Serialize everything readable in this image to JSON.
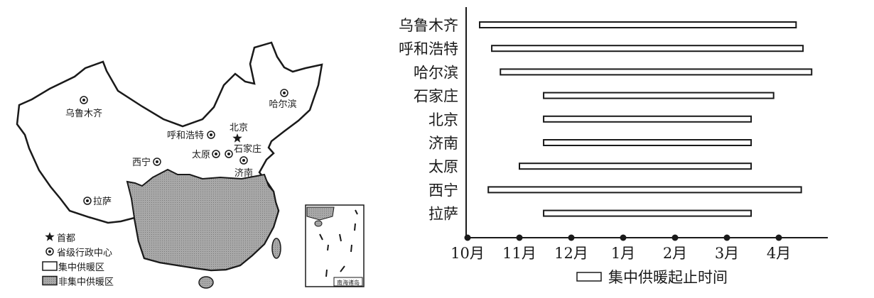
{
  "map": {
    "cities": [
      {
        "name": "乌鲁木齐",
        "kind": "capital-province"
      },
      {
        "name": "哈尔滨",
        "kind": "capital-province"
      },
      {
        "name": "呼和浩特",
        "kind": "capital-province"
      },
      {
        "name": "北京",
        "kind": "capital"
      },
      {
        "name": "石家庄",
        "kind": "capital-province"
      },
      {
        "name": "太原",
        "kind": "capital-province"
      },
      {
        "name": "西宁",
        "kind": "capital-province"
      },
      {
        "name": "济南",
        "kind": "capital-province"
      },
      {
        "name": "拉萨",
        "kind": "capital-province"
      }
    ],
    "inset_label": "南海诸岛",
    "legend": [
      {
        "icon": "star-icon",
        "label": "首都"
      },
      {
        "icon": "circle-dot-icon",
        "label": "省级行政中心"
      },
      {
        "icon": "white-box-icon",
        "label": "集中供暖区"
      },
      {
        "icon": "gray-box-icon",
        "label": "非集中供暖区"
      }
    ],
    "colors": {
      "non_heating": "#9a9a9a",
      "outline": "#1a1a1a"
    }
  },
  "chart_data": {
    "type": "bar",
    "orientation": "horizontal-range",
    "categories": [
      "乌鲁木齐",
      "呼和浩特",
      "哈尔滨",
      "石家庄",
      "北京",
      "济南",
      "太原",
      "西宁",
      "拉萨"
    ],
    "series": [
      {
        "name": "集中供暖起止时间",
        "start": [
          "10-08",
          "10-15",
          "10-20",
          "11-15",
          "11-15",
          "11-15",
          "11-01",
          "10-13",
          "11-15"
        ],
        "end": [
          "04-11",
          "04-15",
          "04-20",
          "03-28",
          "03-15",
          "03-15",
          "03-15",
          "04-14",
          "03-15"
        ]
      }
    ],
    "x_ticks": [
      "10月",
      "11月",
      "12月",
      "1月",
      "2月",
      "3月",
      "4月"
    ],
    "legend": {
      "label": "集中供暖起止时间",
      "placement": "bottom"
    },
    "grid": false
  }
}
